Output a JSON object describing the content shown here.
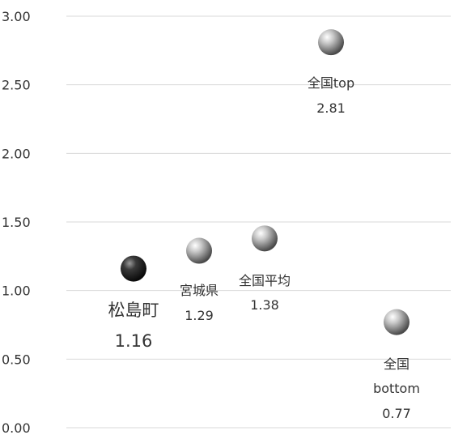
{
  "chart_data": {
    "type": "scatter",
    "title": "",
    "xlabel": "",
    "ylabel": "",
    "ylim": [
      0,
      3.0
    ],
    "y_ticks": [
      "0.00",
      "0.50",
      "1.00",
      "1.50",
      "2.00",
      "2.50",
      "3.00"
    ],
    "grid": "horizontal",
    "legend": "none",
    "points": [
      {
        "name": "松島町",
        "value": 1.16,
        "label_value": "1.16",
        "color": "#2a2a2a",
        "emphasis": true
      },
      {
        "name": "宮城県",
        "value": 1.29,
        "label_value": "1.29",
        "color": "#9a9a9a"
      },
      {
        "name": "全国平均",
        "value": 1.38,
        "label_value": "1.38",
        "color": "#9a9a9a"
      },
      {
        "name": "全国top",
        "value": 2.81,
        "label_value": "2.81",
        "color": "#9a9a9a"
      },
      {
        "name_lines": [
          "全国",
          "bottom"
        ],
        "value": 0.77,
        "label_value": "0.77",
        "color": "#9a9a9a"
      }
    ]
  }
}
